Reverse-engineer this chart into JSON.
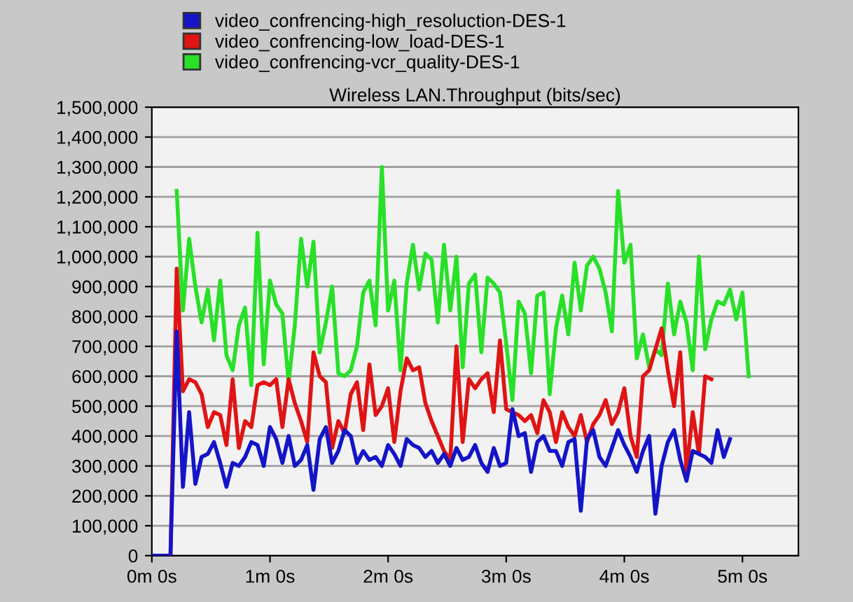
{
  "chart_data": {
    "type": "line",
    "title": "Wireless LAN.Throughput (bits/sec)",
    "legend": "top",
    "grid": "y",
    "marker": "none",
    "line_style": "solid",
    "categories": [
      "0m 0s",
      null,
      null,
      null,
      null,
      null,
      null,
      null,
      null,
      null,
      null,
      null,
      null,
      null,
      null,
      null,
      null,
      null,
      null,
      "1m 0s",
      null,
      null,
      null,
      null,
      null,
      null,
      null,
      null,
      null,
      null,
      null,
      null,
      null,
      null,
      null,
      null,
      null,
      null,
      "2m 0s",
      null,
      null,
      null,
      null,
      null,
      null,
      null,
      null,
      null,
      null,
      null,
      null,
      null,
      null,
      null,
      null,
      null,
      null,
      "3m 0s",
      null,
      null,
      null,
      null,
      null,
      null,
      null,
      null,
      null,
      null,
      null,
      null,
      null,
      null,
      null,
      null,
      null,
      null,
      "4m 0s",
      null,
      null,
      null,
      null,
      null,
      null,
      null,
      null,
      null,
      null,
      null,
      null,
      null,
      null,
      null,
      null,
      null,
      null,
      "5m 0s",
      null,
      null,
      null,
      null,
      null,
      null,
      null,
      null,
      null
    ],
    "ylim": [
      0,
      1500000
    ],
    "yticks": [
      {
        "value": 0,
        "label": "0"
      },
      {
        "value": 100000,
        "label": "100,000"
      },
      {
        "value": 200000,
        "label": "200,000"
      },
      {
        "value": 300000,
        "label": "300,000"
      },
      {
        "value": 400000,
        "label": "400,000"
      },
      {
        "value": 500000,
        "label": "500,000"
      },
      {
        "value": 600000,
        "label": "600,000"
      },
      {
        "value": 700000,
        "label": "700,000"
      },
      {
        "value": 800000,
        "label": "800,000"
      },
      {
        "value": 900000,
        "label": "900,000"
      },
      {
        "value": 1000000,
        "label": "1,000,000"
      },
      {
        "value": 1100000,
        "label": "1,100,000"
      },
      {
        "value": 1200000,
        "label": "1,200,000"
      },
      {
        "value": 1300000,
        "label": "1,300,000"
      },
      {
        "value": 1400000,
        "label": "1,400,000"
      },
      {
        "value": 1500000,
        "label": "1,500,000"
      }
    ],
    "series": [
      {
        "name": "video_confrencing-high_resoluction-DES-1",
        "color": "#1414c8",
        "values": [
          0,
          0,
          0,
          0,
          750000,
          230000,
          480000,
          240000,
          330000,
          340000,
          380000,
          310000,
          230000,
          310000,
          300000,
          330000,
          380000,
          370000,
          300000,
          430000,
          390000,
          310000,
          400000,
          300000,
          320000,
          370000,
          220000,
          390000,
          430000,
          310000,
          350000,
          420000,
          400000,
          310000,
          350000,
          320000,
          330000,
          300000,
          370000,
          340000,
          300000,
          390000,
          370000,
          360000,
          330000,
          350000,
          310000,
          340000,
          300000,
          360000,
          320000,
          330000,
          370000,
          310000,
          280000,
          360000,
          300000,
          310000,
          490000,
          400000,
          410000,
          280000,
          380000,
          400000,
          350000,
          350000,
          300000,
          380000,
          390000,
          150000,
          390000,
          420000,
          330000,
          300000,
          360000,
          420000,
          370000,
          330000,
          280000,
          350000,
          400000,
          140000,
          300000,
          380000,
          420000,
          320000,
          250000,
          350000,
          340000,
          330000,
          310000,
          420000,
          330000,
          390000,
          null,
          null,
          null,
          null,
          null,
          null,
          null,
          null,
          null,
          null,
          null
        ]
      },
      {
        "name": "video_confrencing-low_load-DES-1",
        "color": "#e01414",
        "values": [
          null,
          null,
          null,
          0,
          960000,
          550000,
          590000,
          580000,
          540000,
          430000,
          480000,
          470000,
          370000,
          590000,
          360000,
          450000,
          430000,
          570000,
          580000,
          570000,
          590000,
          430000,
          590000,
          510000,
          450000,
          380000,
          680000,
          600000,
          580000,
          360000,
          450000,
          410000,
          540000,
          580000,
          420000,
          640000,
          470000,
          500000,
          560000,
          380000,
          550000,
          660000,
          620000,
          630000,
          510000,
          450000,
          400000,
          350000,
          320000,
          700000,
          380000,
          590000,
          560000,
          590000,
          610000,
          480000,
          720000,
          490000,
          480000,
          470000,
          450000,
          470000,
          410000,
          520000,
          480000,
          380000,
          480000,
          430000,
          400000,
          470000,
          380000,
          440000,
          470000,
          520000,
          440000,
          480000,
          560000,
          400000,
          330000,
          600000,
          620000,
          690000,
          760000,
          620000,
          500000,
          680000,
          280000,
          480000,
          340000,
          600000,
          590000,
          null,
          null,
          null,
          null,
          null,
          null,
          null,
          null,
          null,
          null,
          null,
          null,
          null,
          null
        ]
      },
      {
        "name": "video_confrencing-vcr_quality-DES-1",
        "color": "#28e028",
        "values": [
          null,
          null,
          null,
          null,
          1220000,
          820000,
          1060000,
          900000,
          780000,
          890000,
          720000,
          920000,
          670000,
          620000,
          770000,
          830000,
          570000,
          1080000,
          640000,
          920000,
          840000,
          810000,
          580000,
          770000,
          1060000,
          900000,
          1050000,
          680000,
          780000,
          900000,
          610000,
          600000,
          620000,
          700000,
          880000,
          920000,
          770000,
          1300000,
          820000,
          920000,
          620000,
          910000,
          1040000,
          890000,
          1010000,
          990000,
          780000,
          1040000,
          820000,
          1000000,
          630000,
          910000,
          940000,
          680000,
          930000,
          910000,
          880000,
          710000,
          520000,
          850000,
          810000,
          610000,
          870000,
          880000,
          540000,
          760000,
          870000,
          740000,
          980000,
          820000,
          970000,
          1000000,
          960000,
          880000,
          750000,
          1220000,
          980000,
          1040000,
          660000,
          740000,
          630000,
          690000,
          670000,
          910000,
          740000,
          850000,
          780000,
          620000,
          1000000,
          690000,
          790000,
          850000,
          840000,
          890000,
          790000,
          880000,
          600000,
          null,
          null,
          null,
          null,
          null,
          null,
          null,
          null
        ]
      }
    ]
  }
}
